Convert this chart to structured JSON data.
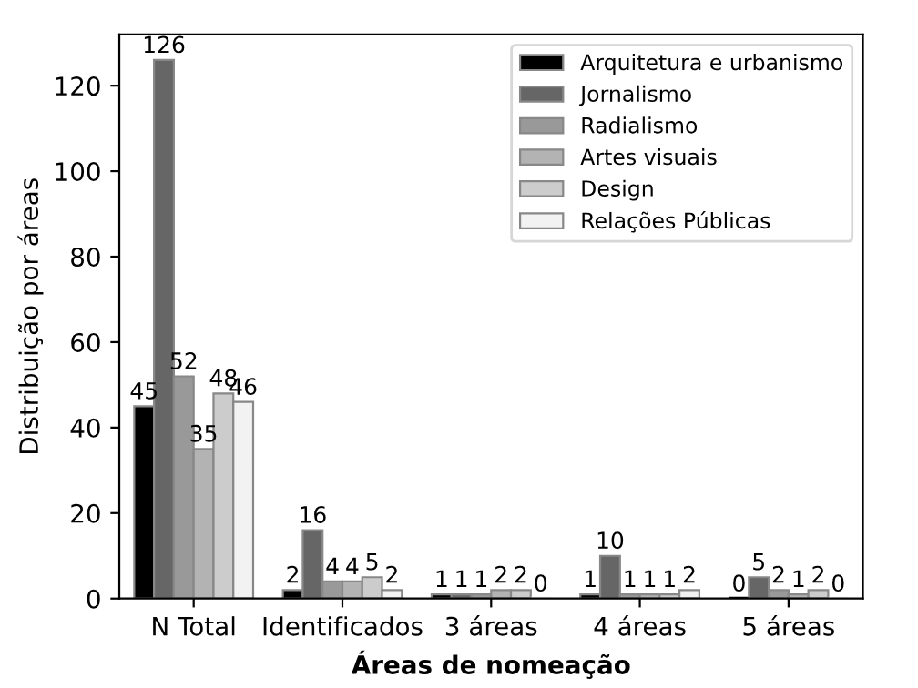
{
  "chart_data": {
    "type": "bar",
    "xlabel": "Áreas de nomeação",
    "ylabel": "Distribuição por áreas",
    "categories": [
      "N Total",
      "Identificados",
      "3 áreas",
      "4 áreas",
      "5 áreas"
    ],
    "series": [
      {
        "name": "Arquitetura e urbanismo",
        "color": "#000000",
        "values": [
          45,
          2,
          1,
          1,
          0
        ]
      },
      {
        "name": "Jornalismo",
        "color": "#666666",
        "values": [
          126,
          16,
          1,
          10,
          5
        ]
      },
      {
        "name": "Radialismo",
        "color": "#999999",
        "values": [
          52,
          4,
          1,
          1,
          2
        ]
      },
      {
        "name": "Artes visuais",
        "color": "#b3b3b3",
        "values": [
          35,
          4,
          2,
          1,
          1
        ]
      },
      {
        "name": "Design",
        "color": "#cccccc",
        "values": [
          48,
          5,
          2,
          1,
          2
        ]
      },
      {
        "name": "Relações Públicas",
        "color": "#f2f2f2",
        "values": [
          46,
          2,
          0,
          2,
          0
        ]
      }
    ],
    "ylim": [
      0,
      132
    ],
    "yticks": [
      0,
      20,
      40,
      60,
      80,
      100,
      120
    ],
    "data_labels": true,
    "legend": "top right",
    "grid": false
  }
}
